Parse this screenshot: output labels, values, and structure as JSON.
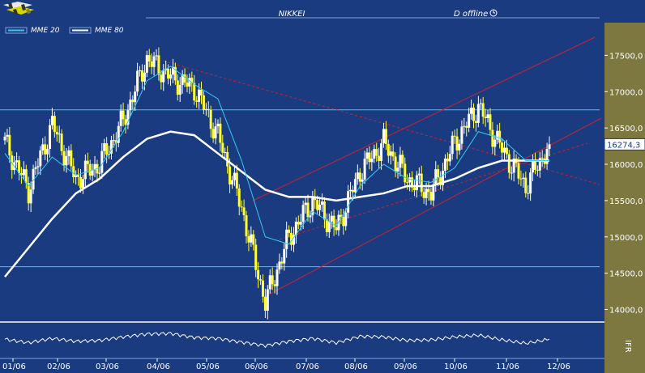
{
  "header": {
    "title": "NIKKEI",
    "mode": "D offline"
  },
  "legend": [
    {
      "label": "MME 20",
      "color": "#33ccee"
    },
    {
      "label": "MME 80",
      "color": "#ffffff"
    }
  ],
  "indicator_label": "IFR",
  "colors": {
    "background": "#1a3b80",
    "axis_panel": "#7d7840",
    "candle_up": "#ffffff",
    "candle_down": "#ffff33",
    "mme20": "#33ccee",
    "mme80": "#ffffff",
    "support_resistance": "#33ccee",
    "trendline": "#cc2233",
    "last_price_box": "#ffffff"
  },
  "chart_data": {
    "type": "line",
    "title": "NIKKEI",
    "xlabel": "",
    "ylabel": "",
    "ylim": [
      13850,
      17950
    ],
    "y_ticks": [
      "17500,0",
      "17000,0",
      "16500,0",
      "16000,0",
      "15500,0",
      "15000,0",
      "14500,0",
      "14000,0"
    ],
    "y_tick_values": [
      17500,
      17000,
      16500,
      16000,
      15500,
      15000,
      14500,
      14000
    ],
    "x_ticks": [
      "01/06",
      "02/06",
      "03/06",
      "04/06",
      "05/06",
      "06/06",
      "07/06",
      "08/06",
      "09/06",
      "10/06",
      "11/06",
      "12/06"
    ],
    "last_price": 16274.3,
    "last_price_label": "16274,3",
    "horizontal_lines": [
      16750,
      14590
    ],
    "close_series": [
      {
        "x": "01/06",
        "y": 16300
      },
      {
        "x": "01/06",
        "y": 15650
      },
      {
        "x": "02/06",
        "y": 16550
      },
      {
        "x": "02/06",
        "y": 15800
      },
      {
        "x": "03/06",
        "y": 16000
      },
      {
        "x": "03/06",
        "y": 16600
      },
      {
        "x": "04/06",
        "y": 17450
      },
      {
        "x": "04/06",
        "y": 17200
      },
      {
        "x": "05/06",
        "y": 17050
      },
      {
        "x": "05/06",
        "y": 16400
      },
      {
        "x": "06/06",
        "y": 15400
      },
      {
        "x": "06/06",
        "y": 14100
      },
      {
        "x": "07/06",
        "y": 15000
      },
      {
        "x": "07/06",
        "y": 15500
      },
      {
        "x": "08/06",
        "y": 15100
      },
      {
        "x": "08/06",
        "y": 15900
      },
      {
        "x": "09/06",
        "y": 16300
      },
      {
        "x": "09/06",
        "y": 15800
      },
      {
        "x": "10/06",
        "y": 15600
      },
      {
        "x": "10/06",
        "y": 16300
      },
      {
        "x": "11/06",
        "y": 16800
      },
      {
        "x": "11/06",
        "y": 16200
      },
      {
        "x": "12/06",
        "y": 15700
      },
      {
        "x": "12/06",
        "y": 16274.3
      }
    ],
    "series": [
      {
        "name": "MME 20",
        "values": [
          16150,
          15700,
          16100,
          15850,
          15950,
          16450,
          17150,
          17350,
          17100,
          16900,
          16050,
          15000,
          14900,
          15350,
          15150,
          15700,
          16000,
          15800,
          15750,
          15950,
          16450,
          16350,
          16050,
          16050
        ]
      },
      {
        "name": "MME 80",
        "values": [
          14450,
          14850,
          15250,
          15600,
          15800,
          16100,
          16350,
          16450,
          16400,
          16150,
          15900,
          15650,
          15550,
          15550,
          15500,
          15550,
          15600,
          15700,
          15700,
          15800,
          15950,
          16050,
          16050,
          16050
        ]
      }
    ],
    "ifr_values": [
      52,
      40,
      55,
      45,
      48,
      60,
      70,
      72,
      58,
      55,
      42,
      30,
      45,
      55,
      40,
      62,
      60,
      48,
      50,
      60,
      66,
      50,
      38,
      52
    ],
    "grid": false
  }
}
